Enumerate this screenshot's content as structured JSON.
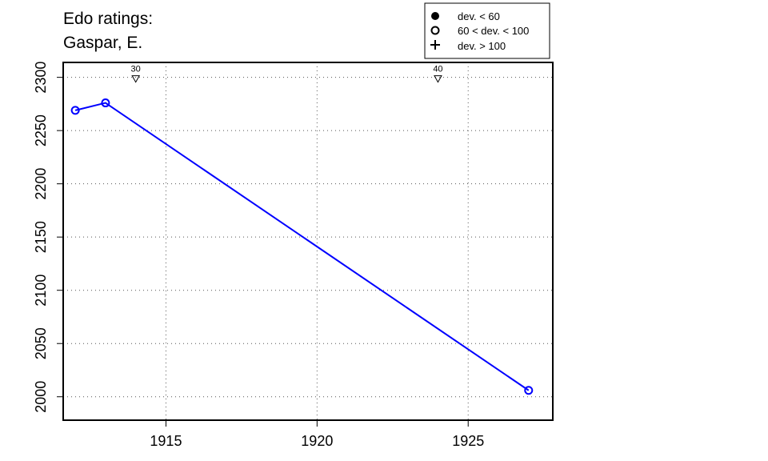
{
  "chart_data": {
    "type": "line",
    "title_lines": [
      "Edo ratings:",
      "Gaspar, E."
    ],
    "xlabel": "",
    "ylabel": "",
    "xlim": [
      1911.6,
      1927.8
    ],
    "ylim": [
      1978,
      2314
    ],
    "x_ticks": [
      1915,
      1920,
      1925
    ],
    "y_ticks": [
      2000,
      2050,
      2100,
      2150,
      2200,
      2250,
      2300
    ],
    "grid": true,
    "series": [
      {
        "color": "#0000ff",
        "marker": "open-circle",
        "points": [
          {
            "x": 1912,
            "y": 2269
          },
          {
            "x": 1913,
            "y": 2276
          },
          {
            "x": 1927,
            "y": 2006
          }
        ]
      }
    ],
    "annotations": [
      {
        "x": 1914,
        "label": "30",
        "marker": "down-triangle"
      },
      {
        "x": 1924,
        "label": "40",
        "marker": "down-triangle"
      }
    ],
    "legend": {
      "position": "top-right",
      "entries": [
        {
          "symbol": "filled-circle",
          "label": "dev. < 60"
        },
        {
          "symbol": "open-circle",
          "label": "60 < dev. < 100"
        },
        {
          "symbol": "plus",
          "label": "dev. > 100"
        }
      ]
    }
  }
}
